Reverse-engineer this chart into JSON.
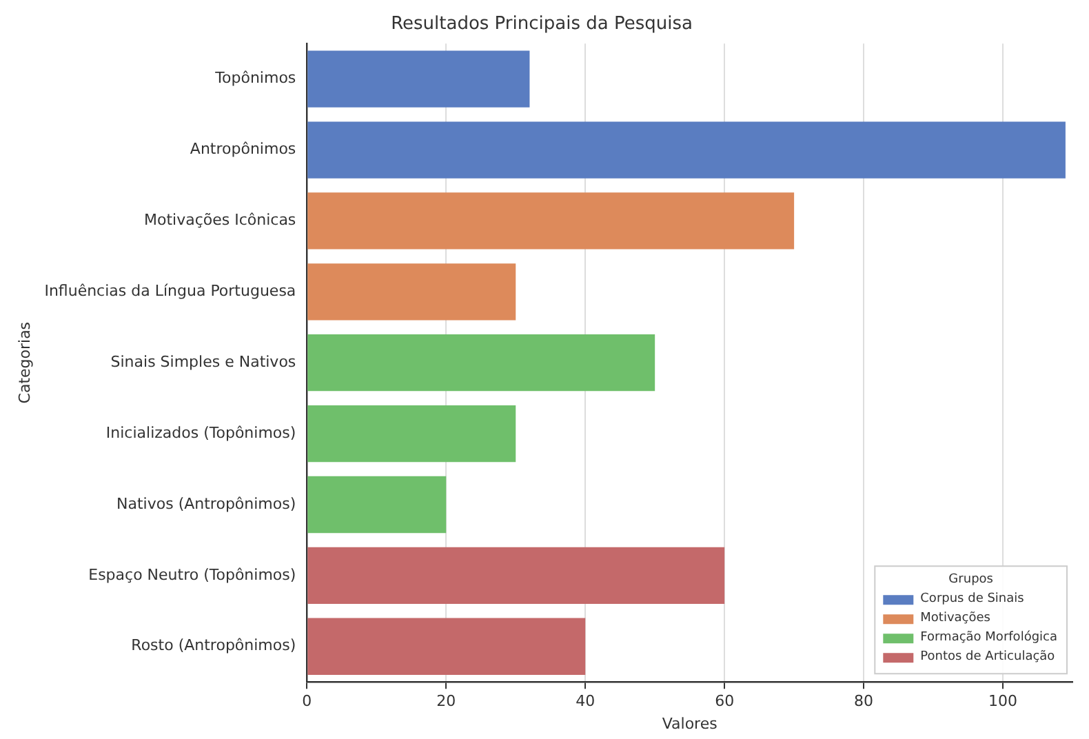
{
  "chart_data": {
    "type": "bar",
    "orientation": "horizontal",
    "title": "Resultados Principais da Pesquisa",
    "xlabel": "Valores",
    "ylabel": "Categorias",
    "legend_title": "Grupos",
    "legend": "bottom right",
    "grid": "x",
    "categories": [
      "Topônimos",
      "Antropônimos",
      "Motivações Icônicas",
      "Influências da Língua Portuguesa",
      "Sinais Simples e Nativos",
      "Inicializados (Topônimos)",
      "Nativos (Antropônimos)",
      "Espaço Neutro (Topônimos)",
      "Rosto (Antropônimos)"
    ],
    "xlim": [
      0,
      110
    ],
    "xticks": [
      0,
      20,
      40,
      60,
      80,
      100
    ],
    "series": [
      {
        "name": "Corpus de Sinais",
        "color": "#5a7dc1",
        "values": [
          32,
          109,
          null,
          null,
          null,
          null,
          null,
          null,
          null
        ]
      },
      {
        "name": "Motivações",
        "color": "#dd8a5b",
        "values": [
          null,
          null,
          70,
          30,
          null,
          null,
          null,
          null,
          null
        ]
      },
      {
        "name": "Formação Morfológica",
        "color": "#6fbf6b",
        "values": [
          null,
          null,
          null,
          null,
          50,
          30,
          20,
          null,
          null
        ]
      },
      {
        "name": "Pontos de Articulação",
        "color": "#c4696a",
        "values": [
          null,
          null,
          null,
          null,
          null,
          null,
          null,
          60,
          40
        ]
      }
    ]
  }
}
